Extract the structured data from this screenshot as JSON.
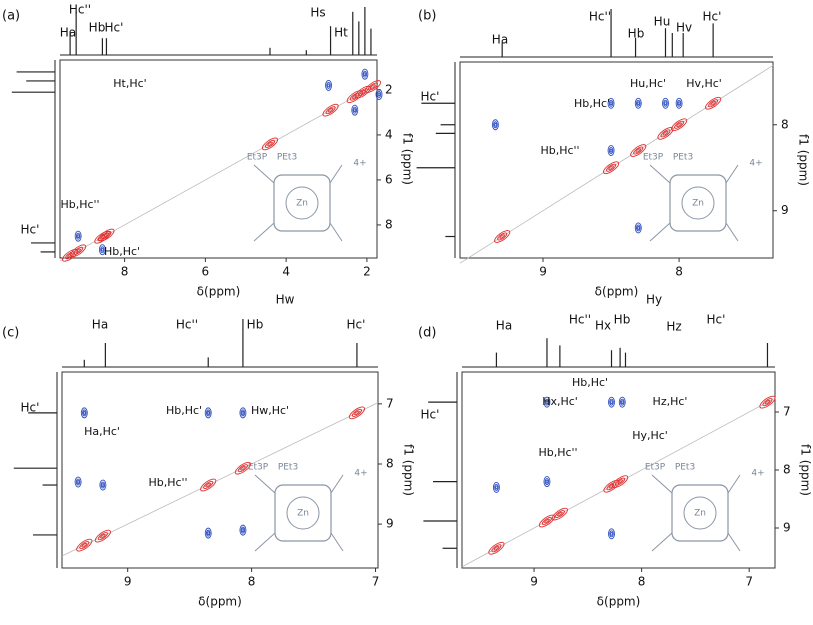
{
  "chart_data": [
    {
      "type": "nmr2d",
      "panel_label": "(a)",
      "xlabel": "δ(ppm)",
      "ylabel": "f1 (ppm)",
      "xlim": [
        9.6,
        1.75
      ],
      "xticks": [
        8,
        6,
        4,
        2
      ],
      "ylim": [
        0.67,
        9.47
      ],
      "yticks": [
        2,
        4,
        6,
        8
      ],
      "top_labels": [
        "Ha",
        "Hc''",
        "Hb",
        "Hc'",
        "Hs",
        "Ht"
      ],
      "side_labels": [
        "Hc'"
      ],
      "annotations": [
        "Ht,Hc'",
        "Hb,Hc''",
        "Hb,Hc'"
      ],
      "molecule_labels": [
        "Et3P",
        "PEt3",
        "Zn",
        "4+"
      ],
      "top_peaks": [
        {
          "x": 9.35,
          "h": 0.5
        },
        {
          "x": 9.2,
          "h": 0.9
        },
        {
          "x": 8.55,
          "h": 0.35
        },
        {
          "x": 8.45,
          "h": 0.35
        },
        {
          "x": 4.4,
          "h": 0.15
        },
        {
          "x": 3.5,
          "h": 0.1
        },
        {
          "x": 2.9,
          "h": 0.6
        },
        {
          "x": 2.35,
          "h": 0.9
        },
        {
          "x": 2.2,
          "h": 0.7
        },
        {
          "x": 2.05,
          "h": 1
        },
        {
          "x": 1.9,
          "h": 0.55
        }
      ],
      "side_peaks": [
        {
          "y": 1.2,
          "h": 0.8
        },
        {
          "y": 1.6,
          "h": 0.6
        },
        {
          "y": 2.1,
          "h": 0.9
        },
        {
          "y": 8.8,
          "h": 0.5
        },
        {
          "y": 9.2,
          "h": 0.3
        }
      ],
      "peaks": [
        {
          "x": 9.35,
          "y": 9.35,
          "color": "#e03030"
        },
        {
          "x": 9.15,
          "y": 9.15,
          "color": "#e03030"
        },
        {
          "x": 8.55,
          "y": 8.55,
          "color": "#e03030"
        },
        {
          "x": 8.45,
          "y": 8.45,
          "color": "#e03030"
        },
        {
          "x": 4.4,
          "y": 4.4,
          "color": "#e03030"
        },
        {
          "x": 2.9,
          "y": 2.9,
          "color": "#e03030"
        },
        {
          "x": 2.3,
          "y": 2.3,
          "color": "#e03030"
        },
        {
          "x": 2.1,
          "y": 2.1,
          "color": "#e03030"
        },
        {
          "x": 1.85,
          "y": 1.85,
          "color": "#e03030"
        },
        {
          "x": 2.95,
          "y": 1.8,
          "color": "#3050c0"
        },
        {
          "x": 2.3,
          "y": 2.9,
          "color": "#3050c0"
        },
        {
          "x": 2.05,
          "y": 1.3,
          "color": "#3050c0"
        },
        {
          "x": 9.15,
          "y": 8.5,
          "color": "#3050c0"
        },
        {
          "x": 8.55,
          "y": 9.1,
          "color": "#3050c0"
        },
        {
          "x": 1.7,
          "y": 2.2,
          "color": "#3050c0"
        }
      ]
    },
    {
      "type": "nmr2d",
      "panel_label": "(b)",
      "xlabel": "δ(ppm)",
      "ylabel": "f1 (ppm)",
      "xlim": [
        9.61,
        7.31
      ],
      "xticks": [
        9,
        8
      ],
      "ylim": [
        7.27,
        9.55
      ],
      "yticks": [
        8,
        9
      ],
      "top_labels": [
        "Ha",
        "Hc''",
        "Hb",
        "Hu",
        "Hv",
        "Hc'"
      ],
      "side_labels": [
        "Hc'"
      ],
      "annotations": [
        "Hu,Hc'",
        "Hv,Hc'",
        "Hb,Hc'",
        "Hb,Hc''"
      ],
      "molecule_labels": [
        "Et3P",
        "PEt3",
        "Zn",
        "4+"
      ],
      "top_peaks": [
        {
          "x": 9.3,
          "h": 0.3
        },
        {
          "x": 8.5,
          "h": 1
        },
        {
          "x": 8.32,
          "h": 0.4
        },
        {
          "x": 8.1,
          "h": 0.6
        },
        {
          "x": 8.05,
          "h": 0.5
        },
        {
          "x": 7.97,
          "h": 0.5
        },
        {
          "x": 7.75,
          "h": 0.7
        }
      ],
      "side_peaks": [
        {
          "y": 7.75,
          "h": 0.7
        },
        {
          "y": 8.0,
          "h": 0.3
        },
        {
          "y": 8.1,
          "h": 0.4
        },
        {
          "y": 8.5,
          "h": 0.8
        },
        {
          "y": 9.3,
          "h": 0.2
        }
      ],
      "peaks": [
        {
          "x": 9.3,
          "y": 9.3,
          "color": "#e03030"
        },
        {
          "x": 8.5,
          "y": 8.5,
          "color": "#e03030"
        },
        {
          "x": 8.3,
          "y": 8.3,
          "color": "#e03030"
        },
        {
          "x": 8.1,
          "y": 8.1,
          "color": "#e03030"
        },
        {
          "x": 8.0,
          "y": 8.0,
          "color": "#e03030"
        },
        {
          "x": 7.75,
          "y": 7.75,
          "color": "#e03030"
        },
        {
          "x": 9.35,
          "y": 8.0,
          "color": "#3050c0"
        },
        {
          "x": 8.5,
          "y": 7.75,
          "color": "#3050c0"
        },
        {
          "x": 8.3,
          "y": 7.75,
          "color": "#3050c0"
        },
        {
          "x": 8.1,
          "y": 7.75,
          "color": "#3050c0"
        },
        {
          "x": 8.0,
          "y": 7.75,
          "color": "#3050c0"
        },
        {
          "x": 8.5,
          "y": 8.3,
          "color": "#3050c0"
        },
        {
          "x": 8.3,
          "y": 9.2,
          "color": "#3050c0"
        }
      ]
    },
    {
      "type": "nmr2d",
      "panel_label": "(c)",
      "xlabel": "δ(ppm)",
      "ylabel": "f1 (ppm)",
      "xlim": [
        9.53,
        6.98
      ],
      "xticks": [
        9,
        8,
        7
      ],
      "ylim": [
        6.47,
        9.73
      ],
      "yticks": [
        7,
        8,
        9
      ],
      "top_labels": [
        "Ha",
        "Hc''",
        "Hb",
        "Hw",
        "Hc'"
      ],
      "side_labels": [
        "Hc'"
      ],
      "annotations": [
        "Ha,Hc'",
        "Hb,Hc'",
        "Hw,Hc'",
        "Hb,Hc''"
      ],
      "molecule_labels": [
        "Et3P",
        "PEt3",
        "Zn",
        "4+"
      ],
      "top_peaks": [
        {
          "x": 9.35,
          "h": 0.15
        },
        {
          "x": 9.18,
          "h": 0.5
        },
        {
          "x": 8.35,
          "h": 0.2
        },
        {
          "x": 8.07,
          "h": 1
        },
        {
          "x": 7.15,
          "h": 0.5
        }
      ],
      "side_peaks": [
        {
          "y": 7.15,
          "h": 0.6
        },
        {
          "y": 8.07,
          "h": 0.9
        },
        {
          "y": 8.35,
          "h": 0.3
        },
        {
          "y": 9.18,
          "h": 0.5
        }
      ],
      "peaks": [
        {
          "x": 9.35,
          "y": 9.35,
          "color": "#e03030"
        },
        {
          "x": 9.2,
          "y": 9.2,
          "color": "#e03030"
        },
        {
          "x": 8.35,
          "y": 8.35,
          "color": "#e03030"
        },
        {
          "x": 8.07,
          "y": 8.07,
          "color": "#e03030"
        },
        {
          "x": 7.15,
          "y": 7.15,
          "color": "#e03030"
        },
        {
          "x": 9.35,
          "y": 7.15,
          "color": "#3050c0"
        },
        {
          "x": 8.35,
          "y": 7.15,
          "color": "#3050c0"
        },
        {
          "x": 8.07,
          "y": 7.15,
          "color": "#3050c0"
        },
        {
          "x": 9.4,
          "y": 8.3,
          "color": "#3050c0"
        },
        {
          "x": 9.2,
          "y": 8.35,
          "color": "#3050c0"
        },
        {
          "x": 8.35,
          "y": 9.15,
          "color": "#3050c0"
        },
        {
          "x": 8.07,
          "y": 9.1,
          "color": "#3050c0"
        }
      ]
    },
    {
      "type": "nmr2d",
      "panel_label": "(d)",
      "xlabel": "δ(ppm)",
      "ylabel": "f1 (ppm)",
      "xlim": [
        9.67,
        6.76
      ],
      "xticks": [
        9,
        8,
        7
      ],
      "ylim": [
        6.31,
        9.69
      ],
      "yticks": [
        7,
        8,
        9
      ],
      "top_labels": [
        "Ha",
        "Hc''",
        "Hx",
        "Hb",
        "Hy",
        "Hz",
        "Hc'"
      ],
      "side_labels": [
        "Hc'"
      ],
      "annotations": [
        "Hb,Hc'",
        "Hx,Hc'",
        "Hz,Hc'",
        "Hy,Hc'",
        "Hb,Hc''"
      ],
      "molecule_labels": [
        "Et3P",
        "PEt3",
        "Zn",
        "4+"
      ],
      "top_peaks": [
        {
          "x": 9.35,
          "h": 0.3
        },
        {
          "x": 8.88,
          "h": 0.6
        },
        {
          "x": 8.76,
          "h": 0.45
        },
        {
          "x": 8.28,
          "h": 0.35
        },
        {
          "x": 8.2,
          "h": 0.4
        },
        {
          "x": 8.15,
          "h": 0.3
        },
        {
          "x": 6.83,
          "h": 0.5
        }
      ],
      "side_peaks": [
        {
          "y": 6.83,
          "h": 0.6
        },
        {
          "y": 8.2,
          "h": 0.5
        },
        {
          "y": 8.88,
          "h": 0.7
        },
        {
          "y": 9.35,
          "h": 0.3
        }
      ],
      "peaks": [
        {
          "x": 9.35,
          "y": 9.35,
          "color": "#e03030"
        },
        {
          "x": 8.88,
          "y": 8.88,
          "color": "#e03030"
        },
        {
          "x": 8.76,
          "y": 8.76,
          "color": "#e03030"
        },
        {
          "x": 8.28,
          "y": 8.28,
          "color": "#e03030"
        },
        {
          "x": 8.2,
          "y": 8.2,
          "color": "#e03030"
        },
        {
          "x": 6.83,
          "y": 6.83,
          "color": "#e03030"
        },
        {
          "x": 8.88,
          "y": 6.83,
          "color": "#3050c0"
        },
        {
          "x": 8.28,
          "y": 6.83,
          "color": "#3050c0"
        },
        {
          "x": 8.18,
          "y": 6.83,
          "color": "#3050c0"
        },
        {
          "x": 8.88,
          "y": 8.2,
          "color": "#3050c0"
        },
        {
          "x": 9.35,
          "y": 8.3,
          "color": "#3050c0"
        },
        {
          "x": 8.28,
          "y": 9.1,
          "color": "#3050c0"
        }
      ]
    }
  ]
}
